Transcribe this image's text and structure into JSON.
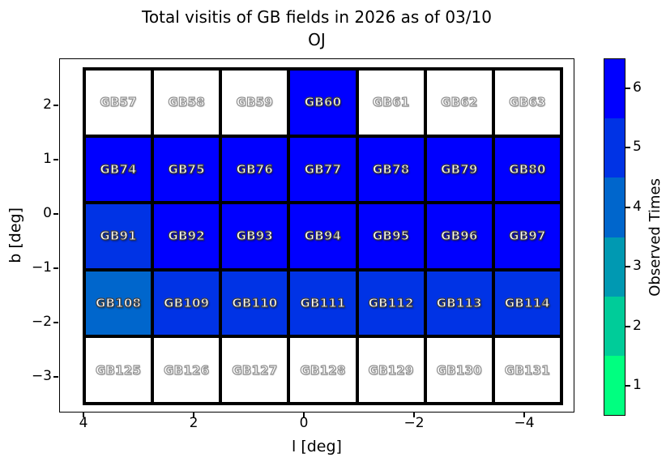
{
  "figure": {
    "title_line1": "Total visitis of GB fields in 2026 as of 03/10",
    "title_line2": "OJ"
  },
  "axes": {
    "xlabel": "l [deg]",
    "ylabel": "b [deg]",
    "xtick_labels": [
      "4",
      "2",
      "0",
      "−2",
      "−4"
    ],
    "ytick_labels": [
      "2",
      "1",
      "0",
      "−1",
      "−2",
      "−3"
    ]
  },
  "colorbar": {
    "label": "Observed Times",
    "tick_labels_top_to_bottom": [
      "6",
      "5",
      "4",
      "3",
      "2",
      "1"
    ],
    "segment_colors_top_to_bottom": [
      "#0000FF",
      "#0033E5",
      "#0066CC",
      "#0099B2",
      "#00CC99",
      "#00FF80"
    ]
  },
  "chart_data": {
    "type": "heatmap",
    "title": "Total visitis of GB fields in 2026 as of 03/10 OJ",
    "xlabel": "l [deg]",
    "ylabel": "b [deg]",
    "x_axis_inverted": true,
    "xlim": [
      4.4,
      -4.9
    ],
    "ylim": [
      -3.6,
      2.9
    ],
    "xticks": [
      4,
      2,
      0,
      -2,
      -4
    ],
    "yticks": [
      2,
      1,
      0,
      -1,
      -2,
      -3
    ],
    "value_label": "Observed Times",
    "value_scale": [
      1,
      2,
      3,
      4,
      5,
      6
    ],
    "colormap": {
      "0": "#FFFFFF",
      "1": "#00FF80",
      "2": "#00CC99",
      "3": "#0099B2",
      "4": "#0066CC",
      "5": "#0033E5",
      "6": "#0000FF"
    },
    "columns_l_centers_approx": [
      3.4,
      2.1,
      0.9,
      -0.3,
      -1.6,
      -2.8,
      -4.0
    ],
    "rows": [
      {
        "b_center_approx": 2.0,
        "fields": [
          "GB57",
          "GB58",
          "GB59",
          "GB60",
          "GB61",
          "GB62",
          "GB63"
        ],
        "values": [
          0,
          0,
          0,
          6,
          0,
          0,
          0
        ]
      },
      {
        "b_center_approx": 0.8,
        "fields": [
          "GB74",
          "GB75",
          "GB76",
          "GB77",
          "GB78",
          "GB79",
          "GB80"
        ],
        "values": [
          6,
          6,
          6,
          6,
          6,
          6,
          6
        ]
      },
      {
        "b_center_approx": -0.4,
        "fields": [
          "GB91",
          "GB92",
          "GB93",
          "GB94",
          "GB95",
          "GB96",
          "GB97"
        ],
        "values": [
          5,
          6,
          6,
          6,
          6,
          6,
          6
        ]
      },
      {
        "b_center_approx": -1.6,
        "fields": [
          "GB108",
          "GB109",
          "GB110",
          "GB111",
          "GB112",
          "GB113",
          "GB114"
        ],
        "values": [
          4,
          5,
          5,
          5,
          5,
          5,
          5
        ]
      },
      {
        "b_center_approx": -2.9,
        "fields": [
          "GB125",
          "GB126",
          "GB127",
          "GB128",
          "GB129",
          "GB130",
          "GB131"
        ],
        "values": [
          0,
          0,
          0,
          0,
          0,
          0,
          0
        ]
      }
    ]
  }
}
